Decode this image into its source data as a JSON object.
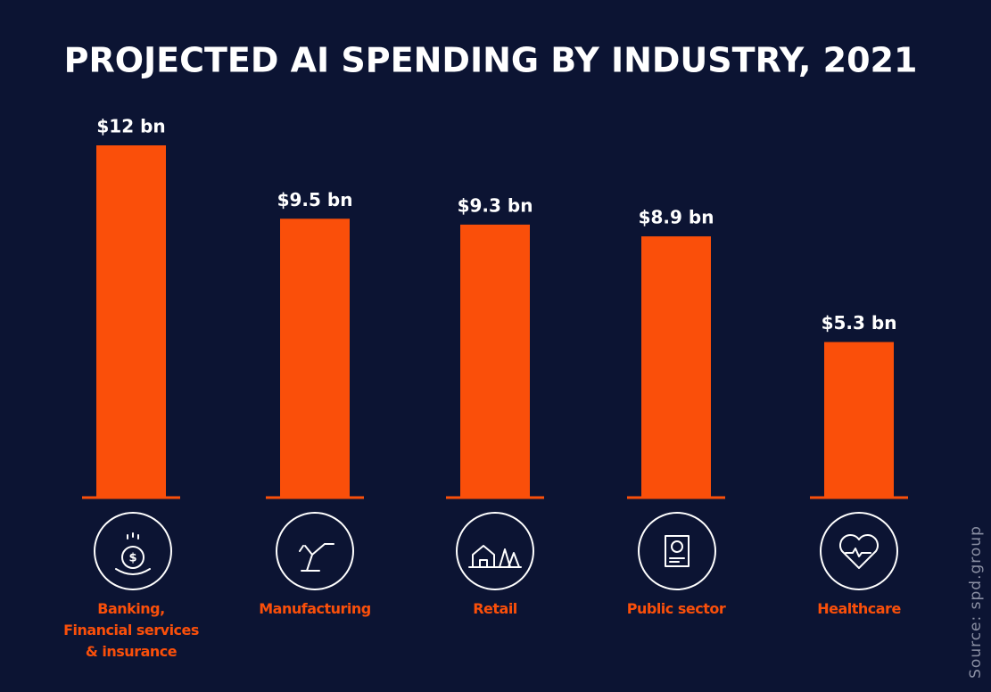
{
  "chart_data": {
    "type": "bar",
    "title": "PROJECTED AI SPENDING BY INDUSTRY, 2021",
    "categories": [
      "Banking,\nFinancial services\n& insurance",
      "Manufacturing",
      "Retail",
      "Public sector",
      "Healthcare"
    ],
    "values": [
      12,
      9.5,
      9.3,
      8.9,
      5.3
    ],
    "value_labels": [
      "$12 bn",
      "$9.5 bn",
      "$9.3 bn",
      "$8.9 bn",
      "$5.3 bn"
    ],
    "color": "#fa4f0a",
    "source": "Source: spd.group"
  }
}
